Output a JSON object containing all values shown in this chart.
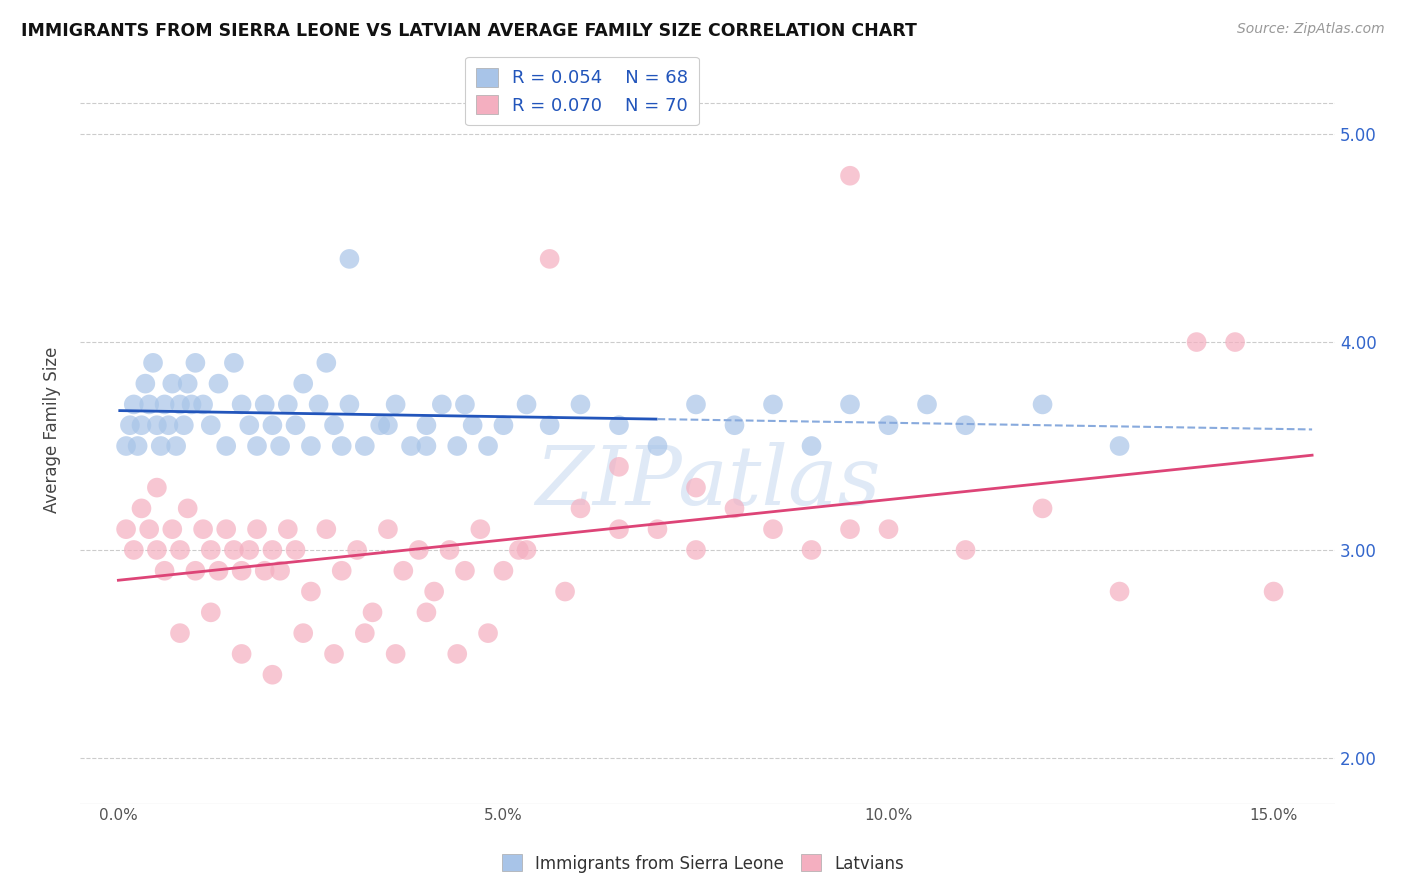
{
  "title": "IMMIGRANTS FROM SIERRA LEONE VS LATVIAN AVERAGE FAMILY SIZE CORRELATION CHART",
  "source": "Source: ZipAtlas.com",
  "ylabel": "Average Family Size",
  "xlabel_ticks": [
    "0.0%",
    "",
    "",
    "",
    "",
    "5.0%",
    "",
    "",
    "",
    "",
    "10.0%",
    "",
    "",
    "",
    "",
    "15.0%"
  ],
  "xlabel_vals": [
    0,
    1,
    2,
    3,
    4,
    5,
    6,
    7,
    8,
    9,
    10,
    11,
    12,
    13,
    14,
    15
  ],
  "xlim": [
    -0.5,
    15.8
  ],
  "ylim": [
    1.78,
    5.38
  ],
  "yticks_right": [
    2.0,
    3.0,
    4.0,
    5.0
  ],
  "blue_R": 0.054,
  "blue_N": 68,
  "pink_R": 0.07,
  "pink_N": 70,
  "blue_color": "#a8c4e8",
  "pink_color": "#f4afc0",
  "blue_line_color": "#2255bb",
  "blue_dash_color": "#88aadd",
  "pink_line_color": "#dd4477",
  "legend_label_blue": "Immigrants from Sierra Leone",
  "legend_label_pink": "Latvians",
  "background_color": "#ffffff",
  "grid_color": "#cccccc",
  "watermark_color": "#c5d8f0",
  "blue_x": [
    0.1,
    0.15,
    0.2,
    0.25,
    0.3,
    0.35,
    0.4,
    0.45,
    0.5,
    0.55,
    0.6,
    0.65,
    0.7,
    0.75,
    0.8,
    0.85,
    0.9,
    0.95,
    1.0,
    1.1,
    1.2,
    1.3,
    1.4,
    1.5,
    1.6,
    1.7,
    1.8,
    1.9,
    2.0,
    2.1,
    2.2,
    2.3,
    2.4,
    2.5,
    2.6,
    2.7,
    2.8,
    2.9,
    3.0,
    3.2,
    3.4,
    3.6,
    3.8,
    4.0,
    4.2,
    4.4,
    4.6,
    4.8,
    5.0,
    5.3,
    5.6,
    6.0,
    6.5,
    7.0,
    7.5,
    8.0,
    8.5,
    9.0,
    9.5,
    10.0,
    10.5,
    11.0,
    12.0,
    13.0,
    3.0,
    3.5,
    4.0,
    4.5
  ],
  "blue_y": [
    3.5,
    3.6,
    3.7,
    3.5,
    3.6,
    3.8,
    3.7,
    3.9,
    3.6,
    3.5,
    3.7,
    3.6,
    3.8,
    3.5,
    3.7,
    3.6,
    3.8,
    3.7,
    3.9,
    3.7,
    3.6,
    3.8,
    3.5,
    3.9,
    3.7,
    3.6,
    3.5,
    3.7,
    3.6,
    3.5,
    3.7,
    3.6,
    3.8,
    3.5,
    3.7,
    3.9,
    3.6,
    3.5,
    3.7,
    3.5,
    3.6,
    3.7,
    3.5,
    3.6,
    3.7,
    3.5,
    3.6,
    3.5,
    3.6,
    3.7,
    3.6,
    3.7,
    3.6,
    3.5,
    3.7,
    3.6,
    3.7,
    3.5,
    3.7,
    3.6,
    3.7,
    3.6,
    3.7,
    3.5,
    4.4,
    3.6,
    3.5,
    3.7
  ],
  "pink_x": [
    0.1,
    0.2,
    0.3,
    0.4,
    0.5,
    0.6,
    0.7,
    0.8,
    0.9,
    1.0,
    1.1,
    1.2,
    1.3,
    1.4,
    1.5,
    1.6,
    1.7,
    1.8,
    1.9,
    2.0,
    2.1,
    2.2,
    2.3,
    2.5,
    2.7,
    2.9,
    3.1,
    3.3,
    3.5,
    3.7,
    3.9,
    4.1,
    4.3,
    4.5,
    4.7,
    5.0,
    5.3,
    5.6,
    6.0,
    6.5,
    7.0,
    7.5,
    8.0,
    8.5,
    9.0,
    9.5,
    10.0,
    11.0,
    12.0,
    13.0,
    14.0,
    14.5,
    15.0,
    0.5,
    0.8,
    1.2,
    1.6,
    2.0,
    2.4,
    2.8,
    3.2,
    3.6,
    4.0,
    4.4,
    4.8,
    5.2,
    5.8,
    6.5,
    7.5,
    9.5
  ],
  "pink_y": [
    3.1,
    3.0,
    3.2,
    3.1,
    3.0,
    2.9,
    3.1,
    3.0,
    3.2,
    2.9,
    3.1,
    3.0,
    2.9,
    3.1,
    3.0,
    2.9,
    3.0,
    3.1,
    2.9,
    3.0,
    2.9,
    3.1,
    3.0,
    2.8,
    3.1,
    2.9,
    3.0,
    2.7,
    3.1,
    2.9,
    3.0,
    2.8,
    3.0,
    2.9,
    3.1,
    2.9,
    3.0,
    4.4,
    3.2,
    3.4,
    3.1,
    3.3,
    3.2,
    3.1,
    3.0,
    4.8,
    3.1,
    3.0,
    3.2,
    2.8,
    4.0,
    4.0,
    2.8,
    3.3,
    2.6,
    2.7,
    2.5,
    2.4,
    2.6,
    2.5,
    2.6,
    2.5,
    2.7,
    2.5,
    2.6,
    3.0,
    2.8,
    3.1,
    3.0,
    3.1
  ]
}
